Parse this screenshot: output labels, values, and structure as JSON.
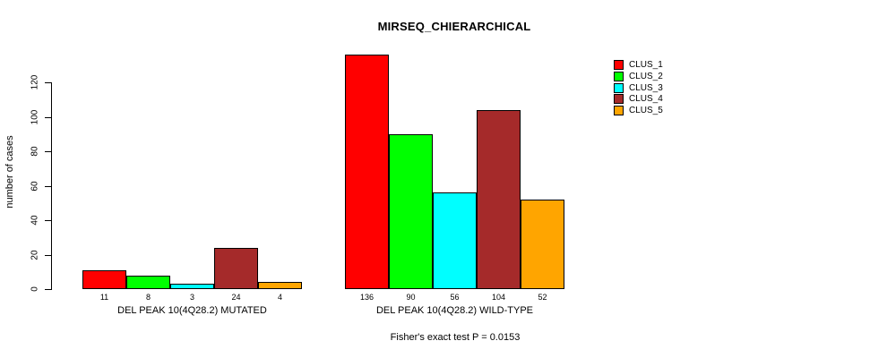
{
  "chart_data": {
    "type": "bar",
    "title": "MIRSEQ_CHIERARCHICAL",
    "ylabel": "number of cases",
    "xlabel": "",
    "categories": [
      "DEL PEAK 10(4Q28.2) MUTATED",
      "DEL PEAK 10(4Q28.2) WILD-TYPE"
    ],
    "series": [
      {
        "name": "CLUS_1",
        "color": "#FF0000",
        "values": [
          11,
          136
        ]
      },
      {
        "name": "CLUS_2",
        "color": "#00FF00",
        "values": [
          8,
          90
        ]
      },
      {
        "name": "CLUS_3",
        "color": "#00FFFF",
        "values": [
          3,
          56
        ]
      },
      {
        "name": "CLUS_4",
        "color": "#A52A2A",
        "values": [
          24,
          104
        ]
      },
      {
        "name": "CLUS_5",
        "color": "#FFA500",
        "values": [
          4,
          52
        ]
      }
    ],
    "bar_value_labels": [
      [
        "11",
        "8",
        "3",
        "24",
        "4"
      ],
      [
        "136",
        "90",
        "56",
        "104",
        "52"
      ]
    ],
    "yticks": [
      0,
      20,
      40,
      60,
      80,
      100,
      120
    ],
    "ylim": [
      0,
      136
    ],
    "grid": false,
    "legend_position": "right",
    "legend_entries": [
      "CLUS_1",
      "CLUS_2",
      "CLUS_3",
      "CLUS_4",
      "CLUS_5"
    ],
    "annotation": "Fisher's exact test P = 0.0153"
  }
}
